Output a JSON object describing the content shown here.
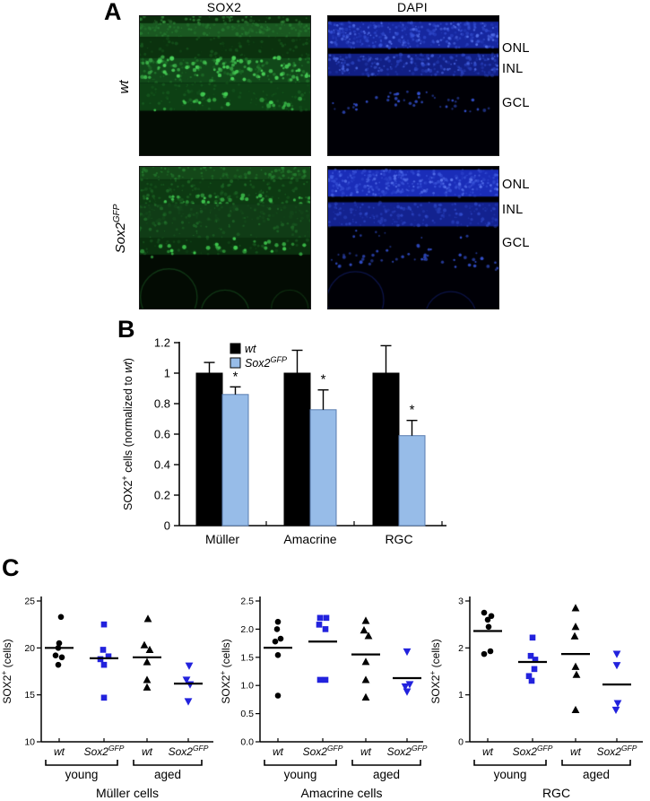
{
  "panels": {
    "a_label": "A",
    "b_label": "B",
    "c_label": "C"
  },
  "panel_a": {
    "columns": [
      "SOX2",
      "DAPI"
    ],
    "rows": [
      {
        "label": {
          "base": "wt",
          "sup": ""
        },
        "layers": [
          "ONL",
          "INL",
          "GCL"
        ]
      },
      {
        "label": {
          "base": "Sox2",
          "sup": "GFP"
        },
        "layers": [
          "ONL",
          "INL",
          "GCL"
        ]
      }
    ],
    "images": {
      "wt_sox2": {
        "seed": 11,
        "bg": "#030c03",
        "layers": [
          {
            "type": "band",
            "y": [
              0.0,
              0.05
            ],
            "color": "#0a2c0c",
            "alpha": 1,
            "noise": "#46b24f",
            "count": 55
          },
          {
            "type": "band",
            "y": [
              0.05,
              0.15
            ],
            "color": "#1c5f24",
            "alpha": 0.92,
            "noise": "#2f8f3a",
            "count": 130
          },
          {
            "type": "band",
            "y": [
              0.15,
              0.3
            ],
            "color": "#0c350f",
            "alpha": 0.95,
            "noise": "#1b6423",
            "count": 90
          },
          {
            "type": "band",
            "y": [
              0.3,
              0.48
            ],
            "color": "#124c1a",
            "alpha": 0.95,
            "noise": "#2a8f36",
            "count": 140
          },
          {
            "type": "speckles",
            "y": [
              0.29,
              0.46
            ],
            "count": 95,
            "r": [
              1.2,
              2.6
            ],
            "color": "#49d258"
          },
          {
            "type": "band",
            "y": [
              0.48,
              0.68
            ],
            "color": "#0e4315",
            "alpha": 0.95,
            "noise": "#1d6b27",
            "count": 110
          },
          {
            "type": "speckles",
            "y": [
              0.57,
              0.66
            ],
            "count": 26,
            "r": [
              1.4,
              2.6
            ],
            "color": "#43cf53",
            "wave": 0.02
          }
        ]
      },
      "wt_dapi": {
        "seed": 22,
        "bg": "#000006",
        "layers": [
          {
            "type": "band",
            "y": [
              0.04,
              0.23
            ],
            "color": "#16279f",
            "alpha": 1,
            "noise": "#3d5ae0",
            "count": 280
          },
          {
            "type": "speckles",
            "y": [
              0.05,
              0.22
            ],
            "count": 95,
            "r": [
              0.8,
              1.8
            ],
            "color": "#5571ea"
          },
          {
            "type": "band",
            "y": [
              0.27,
              0.43
            ],
            "color": "#111f85",
            "alpha": 1,
            "noise": "#3450d2",
            "count": 210
          },
          {
            "type": "speckles",
            "y": [
              0.28,
              0.42
            ],
            "count": 75,
            "r": [
              0.8,
              1.8
            ],
            "color": "#4763dd"
          },
          {
            "type": "speckles",
            "y": [
              0.56,
              0.67
            ],
            "count": 44,
            "r": [
              1.0,
              2.0
            ],
            "color": "#3350cf",
            "wave": 0.025
          }
        ]
      },
      "gfp_sox2": {
        "seed": 33,
        "bg": "#030b03",
        "layers": [
          {
            "type": "band",
            "y": [
              0.0,
              0.09
            ],
            "color": "#164f1c",
            "alpha": 0.9,
            "noise": "#2f9a3b",
            "count": 95
          },
          {
            "type": "band",
            "y": [
              0.09,
              0.26
            ],
            "color": "#0e3d13",
            "alpha": 0.95,
            "noise": "#257d2f",
            "count": 135
          },
          {
            "type": "speckles",
            "y": [
              0.2,
              0.4
            ],
            "count": 115,
            "r": [
              1.0,
              2.4
            ],
            "color": "#3dbf4c"
          },
          {
            "type": "band",
            "y": [
              0.26,
              0.5
            ],
            "color": "#113f17",
            "alpha": 0.95,
            "noise": "#257b2f",
            "count": 125
          },
          {
            "type": "band",
            "y": [
              0.5,
              0.62
            ],
            "color": "#0b330f",
            "alpha": 0.9,
            "noise": "#1b5f23",
            "count": 60
          },
          {
            "type": "speckles",
            "y": [
              0.52,
              0.62
            ],
            "count": 30,
            "r": [
              1.3,
              2.5
            ],
            "color": "#40ca4f",
            "wave": 0.02
          },
          {
            "type": "arc",
            "c": [
              0.17,
              0.92
            ],
            "r": 0.2,
            "color": "#14421a",
            "alpha": 0.8
          },
          {
            "type": "arc",
            "c": [
              0.5,
              1.04
            ],
            "r": 0.17,
            "color": "#14421a",
            "alpha": 0.8
          },
          {
            "type": "arc",
            "c": [
              0.88,
              1.0
            ],
            "r": 0.13,
            "color": "#123a16",
            "alpha": 0.7
          }
        ]
      },
      "gfp_dapi": {
        "seed": 44,
        "bg": "#000006",
        "layers": [
          {
            "type": "band",
            "y": [
              0.02,
              0.21
            ],
            "color": "#1a2db8",
            "alpha": 1,
            "noise": "#4663e6",
            "count": 280
          },
          {
            "type": "speckles",
            "y": [
              0.03,
              0.2
            ],
            "count": 95,
            "r": [
              0.8,
              1.8
            ],
            "color": "#5975ee"
          },
          {
            "type": "band",
            "y": [
              0.25,
              0.42
            ],
            "color": "#13228f",
            "alpha": 1,
            "noise": "#3854d8",
            "count": 200
          },
          {
            "type": "speckles",
            "y": [
              0.44,
              0.5
            ],
            "count": 10,
            "r": [
              0.8,
              1.5
            ],
            "color": "#3350cf"
          },
          {
            "type": "speckles",
            "y": [
              0.58,
              0.7
            ],
            "count": 50,
            "r": [
              1.0,
              2.0
            ],
            "color": "#3350cf",
            "wave": 0.03
          },
          {
            "type": "arc",
            "c": [
              0.16,
              0.94
            ],
            "r": 0.2,
            "color": "#111c66",
            "alpha": 0.7
          },
          {
            "type": "arc",
            "c": [
              0.72,
              1.06
            ],
            "r": 0.18,
            "color": "#111c66",
            "alpha": 0.7
          }
        ]
      }
    }
  },
  "colors": {
    "wt": "#000000",
    "sox2gfp_bar": "#97bce8",
    "sox2gfp_bar_border": "#5a7db0",
    "sox2gfp_marker": "#2222dd"
  },
  "chart_data": [
    {
      "type": "bar",
      "title": "",
      "categories": [
        "Müller",
        "Amacrine",
        "RGC"
      ],
      "series": [
        {
          "name": "wt",
          "label": {
            "base": "wt",
            "sup": ""
          },
          "color": "#000000",
          "border": "#000000",
          "values": [
            1.0,
            1.0,
            1.0
          ],
          "errors": [
            0.07,
            0.15,
            0.18
          ],
          "sig": [
            "",
            "",
            ""
          ]
        },
        {
          "name": "Sox2GFP",
          "label": {
            "base": "Sox2",
            "sup": "GFP"
          },
          "color": "#97bce8",
          "border": "#5a7db0",
          "values": [
            0.86,
            0.76,
            0.59
          ],
          "errors": [
            0.05,
            0.13,
            0.1
          ],
          "sig": [
            "*",
            "*",
            "*"
          ]
        }
      ],
      "ylabel_parts": [
        {
          "t": "SOX2"
        },
        {
          "t": "+",
          "sup": true
        },
        {
          "t": " cells (normalized to "
        },
        {
          "t": "wt",
          "italic": true
        },
        {
          "t": ")"
        }
      ],
      "yticks": [
        {
          "v": 0,
          "t": "0"
        },
        {
          "v": 0.2,
          "t": "0.2"
        },
        {
          "v": 0.4,
          "t": "0.4"
        },
        {
          "v": 0.6,
          "t": "0.6"
        },
        {
          "v": 0.8,
          "t": "0.8"
        },
        {
          "v": 1,
          "t": "1"
        },
        {
          "v": 1.2,
          "t": "1.2"
        }
      ],
      "ylim": [
        0,
        1.2
      ],
      "grid": false,
      "legend_position": "inside-top-left"
    },
    {
      "type": "scatter",
      "title": "Müller cells",
      "ylabel_parts": [
        {
          "t": "SOX2"
        },
        {
          "t": "+",
          "sup": true
        },
        {
          "t": " (cells)"
        }
      ],
      "ylim": [
        10,
        25
      ],
      "yticks": [
        {
          "v": 10,
          "t": "10"
        },
        {
          "v": 15,
          "t": "15"
        },
        {
          "v": 20,
          "t": "20"
        },
        {
          "v": 25,
          "t": "25"
        }
      ],
      "groups": [
        {
          "label": {
            "base": "wt",
            "sup": ""
          },
          "marker": "circle",
          "color": "#000000",
          "mean": 20.0,
          "points": [
            [
              23.3,
              2
            ],
            [
              20.5,
              0
            ],
            [
              20.0,
              -1
            ],
            [
              19.2,
              -4
            ],
            [
              19.0,
              3
            ],
            [
              18.2,
              -1
            ]
          ]
        },
        {
          "label": {
            "base": "Sox2",
            "sup": "GFP"
          },
          "marker": "square",
          "color": "#2222dd",
          "mean": 18.9,
          "points": [
            [
              22.5,
              0
            ],
            [
              19.8,
              -1
            ],
            [
              19.1,
              5
            ],
            [
              18.8,
              -4
            ],
            [
              18.2,
              0
            ],
            [
              14.7,
              0
            ]
          ]
        },
        {
          "label": {
            "base": "wt",
            "sup": ""
          },
          "marker": "triangle-up",
          "color": "#000000",
          "mean": 19.0,
          "points": [
            [
              23.1,
              1
            ],
            [
              20.3,
              -3
            ],
            [
              19.8,
              3
            ],
            [
              18.5,
              0
            ],
            [
              16.6,
              0
            ],
            [
              15.8,
              0
            ]
          ]
        },
        {
          "label": {
            "base": "Sox2",
            "sup": "GFP"
          },
          "marker": "triangle-down",
          "color": "#2222dd",
          "mean": 16.2,
          "points": [
            [
              18.1,
              1
            ],
            [
              16.6,
              -2
            ],
            [
              16.1,
              2
            ],
            [
              14.3,
              0
            ]
          ]
        }
      ],
      "brackets": [
        {
          "label": "young",
          "from": 0,
          "to": 1
        },
        {
          "label": "aged",
          "from": 2,
          "to": 3
        }
      ]
    },
    {
      "type": "scatter",
      "title": "Amacrine cells",
      "ylabel_parts": [
        {
          "t": "SOX2"
        },
        {
          "t": "+",
          "sup": true
        },
        {
          "t": " (cells)"
        }
      ],
      "ylim": [
        0,
        2.5
      ],
      "yticks": [
        {
          "v": 0,
          "t": "0.0"
        },
        {
          "v": 0.5,
          "t": "0.5"
        },
        {
          "v": 1,
          "t": "1.0"
        },
        {
          "v": 1.5,
          "t": "1.5"
        },
        {
          "v": 2,
          "t": "2.0"
        },
        {
          "v": 2.5,
          "t": "2.5"
        }
      ],
      "groups": [
        {
          "label": {
            "base": "wt",
            "sup": ""
          },
          "marker": "circle",
          "color": "#000000",
          "mean": 1.67,
          "points": [
            [
              2.13,
              0
            ],
            [
              2.0,
              -1
            ],
            [
              1.83,
              3
            ],
            [
              1.78,
              -3
            ],
            [
              1.54,
              0
            ],
            [
              0.82,
              0
            ]
          ]
        },
        {
          "label": {
            "base": "Sox2",
            "sup": "GFP"
          },
          "marker": "square",
          "color": "#2222dd",
          "mean": 1.78,
          "points": [
            [
              2.2,
              -3
            ],
            [
              2.2,
              4
            ],
            [
              2.08,
              -4
            ],
            [
              2.0,
              3
            ],
            [
              1.1,
              -3
            ],
            [
              1.1,
              3
            ]
          ]
        },
        {
          "label": {
            "base": "wt",
            "sup": ""
          },
          "marker": "triangle-up",
          "color": "#000000",
          "mean": 1.55,
          "points": [
            [
              2.15,
              0
            ],
            [
              1.98,
              -2
            ],
            [
              1.88,
              3
            ],
            [
              1.42,
              0
            ],
            [
              1.1,
              0
            ],
            [
              0.79,
              0
            ]
          ]
        },
        {
          "label": {
            "base": "Sox2",
            "sup": "GFP"
          },
          "marker": "triangle-down",
          "color": "#2222dd",
          "mean": 1.13,
          "points": [
            [
              1.6,
              0
            ],
            [
              1.02,
              3
            ],
            [
              0.98,
              -2
            ],
            [
              0.89,
              0
            ]
          ]
        }
      ],
      "brackets": [
        {
          "label": "young",
          "from": 0,
          "to": 1
        },
        {
          "label": "aged",
          "from": 2,
          "to": 3
        }
      ]
    },
    {
      "type": "scatter",
      "title": "RGC",
      "ylabel_parts": [
        {
          "t": "SOX2"
        },
        {
          "t": "+",
          "sup": true
        },
        {
          "t": " (cells)"
        }
      ],
      "ylim": [
        0,
        3
      ],
      "yticks": [
        {
          "v": 0,
          "t": "0"
        },
        {
          "v": 1,
          "t": "1"
        },
        {
          "v": 2,
          "t": "2"
        },
        {
          "v": 3,
          "t": "3"
        }
      ],
      "groups": [
        {
          "label": {
            "base": "wt",
            "sup": ""
          },
          "marker": "circle",
          "color": "#000000",
          "mean": 2.36,
          "points": [
            [
              2.75,
              -4
            ],
            [
              2.68,
              4
            ],
            [
              2.6,
              0
            ],
            [
              2.45,
              1
            ],
            [
              1.93,
              3
            ],
            [
              1.87,
              -4
            ]
          ]
        },
        {
          "label": {
            "base": "Sox2",
            "sup": "GFP"
          },
          "marker": "square",
          "color": "#2222dd",
          "mean": 1.7,
          "points": [
            [
              2.22,
              0
            ],
            [
              1.83,
              -2
            ],
            [
              1.75,
              3
            ],
            [
              1.55,
              2
            ],
            [
              1.4,
              -4
            ],
            [
              1.3,
              -1
            ]
          ]
        },
        {
          "label": {
            "base": "wt",
            "sup": ""
          },
          "marker": "triangle-up",
          "color": "#000000",
          "mean": 1.87,
          "points": [
            [
              2.85,
              0
            ],
            [
              2.45,
              0
            ],
            [
              2.25,
              -1
            ],
            [
              1.6,
              0
            ],
            [
              1.43,
              1
            ],
            [
              0.68,
              0
            ]
          ]
        },
        {
          "label": {
            "base": "Sox2",
            "sup": "GFP"
          },
          "marker": "triangle-down",
          "color": "#2222dd",
          "mean": 1.22,
          "points": [
            [
              1.87,
              0
            ],
            [
              1.63,
              0
            ],
            [
              0.82,
              1
            ],
            [
              0.68,
              -1
            ]
          ]
        }
      ],
      "brackets": [
        {
          "label": "young",
          "from": 0,
          "to": 1
        },
        {
          "label": "aged",
          "from": 2,
          "to": 3
        }
      ]
    }
  ]
}
